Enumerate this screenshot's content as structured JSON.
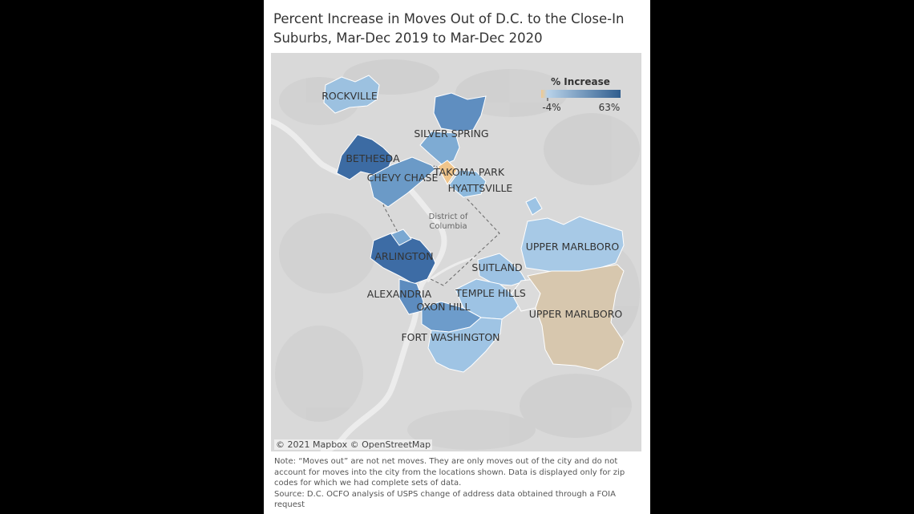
{
  "title": "Percent Increase in Moves Out of D.C. to the Close-In Suburbs, Mar-Dec 2019 to Mar-Dec 2020",
  "legend": {
    "title": "% Increase",
    "min_label": "-4%",
    "max_label": "63%",
    "min_value": -4,
    "max_value": 63,
    "low_color": "#f2c98d",
    "mid_color": "#b9d3ea",
    "high_color": "#2f5d8e"
  },
  "dc_label_line1": "District of",
  "dc_label_line2": "Columbia",
  "attribution": "© 2021 Mapbox © OpenStreetMap",
  "places": [
    {
      "name": "ROCKVILLE"
    },
    {
      "name": "SILVER SPRING"
    },
    {
      "name": "BETHESDA"
    },
    {
      "name": "TAKOMA PARK"
    },
    {
      "name": "CHEVY CHASE"
    },
    {
      "name": "HYATTSVILLE"
    },
    {
      "name": "UPPER MARLBORO"
    },
    {
      "name": "ARLINGTON"
    },
    {
      "name": "SUITLAND"
    },
    {
      "name": "ALEXANDRIA"
    },
    {
      "name": "TEMPLE HILLS"
    },
    {
      "name": "UPPER MARLBORO"
    },
    {
      "name": "OXON HILL"
    },
    {
      "name": "FORT WASHINGTON"
    }
  ],
  "note": "Note: “Moves out” are not net moves. They are only moves out of the city and do not account for moves into the city from the locations shown. Data is displayed only for zip codes for which we had complete sets of data.",
  "source": "Source: D.C. OCFO analysis of USPS change of address data obtained through a FOIA request"
}
